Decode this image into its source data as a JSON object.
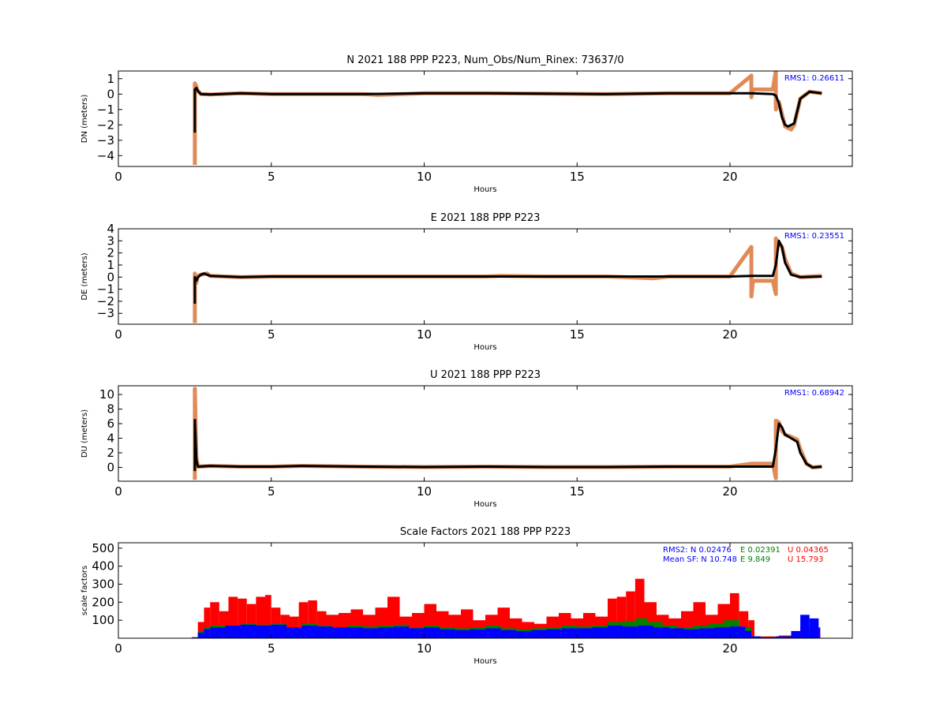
{
  "chart_data": [
    {
      "type": "scatter",
      "title": "N 2021 188 PPP  P223, Num_Obs/Num_Rinex: 73637/0",
      "xlabel": "Hours",
      "ylabel": "DN (meters)",
      "xlim": [
        0,
        24
      ],
      "ylim": [
        -4.7,
        1.5
      ],
      "xticks": [
        "0",
        "5",
        "10",
        "15",
        "20"
      ],
      "yticks": [
        "1",
        "0",
        "−1",
        "−2",
        "−3",
        "−4"
      ],
      "ytick_values": [
        1,
        0,
        -1,
        -2,
        -3,
        -4
      ],
      "annotation": "RMS1:  0.26611",
      "series": [
        {
          "color": "#e08a58",
          "x": [
            2.5,
            2.5,
            2.55,
            2.6,
            2.7,
            3,
            4,
            5,
            6,
            8,
            8.5,
            10,
            12,
            14,
            16,
            18,
            20,
            20.7,
            20.7,
            20.75,
            21.4,
            21.5,
            21.5,
            21.6,
            21.8,
            22,
            22.1,
            22.3,
            22.6,
            23
          ],
          "y": [
            -4.6,
            0.7,
            0.5,
            0.2,
            0.0,
            -0.02,
            0.05,
            0.0,
            0.0,
            0.0,
            -0.05,
            0.05,
            0.05,
            0.03,
            0.0,
            0.05,
            0.05,
            1.2,
            -0.2,
            0.3,
            0.3,
            1.5,
            -1.0,
            -0.5,
            -2.1,
            -2.3,
            -2.0,
            -0.3,
            0.15,
            0.05
          ]
        },
        {
          "color": "#000000",
          "x": [
            2.5,
            2.5,
            2.55,
            2.6,
            2.7,
            3,
            4,
            5,
            6,
            8,
            10,
            12,
            14,
            16,
            18,
            20,
            20.7,
            21.4,
            21.5,
            21.6,
            21.7,
            21.8,
            21.9,
            22.1,
            22.3,
            22.6,
            23
          ],
          "y": [
            -2.5,
            0.3,
            0.4,
            0.2,
            0.0,
            -0.02,
            0.05,
            0.0,
            0.0,
            0.0,
            0.05,
            0.05,
            0.03,
            0.0,
            0.05,
            0.05,
            0.05,
            0.0,
            -0.1,
            -0.6,
            -1.5,
            -2.0,
            -2.1,
            -1.9,
            -0.3,
            0.15,
            0.05
          ]
        }
      ]
    },
    {
      "type": "scatter",
      "title": "E 2021 188 PPP  P223",
      "xlabel": "Hours",
      "ylabel": "DE (meters)",
      "xlim": [
        0,
        24
      ],
      "ylim": [
        -3.9,
        4.0
      ],
      "xticks": [
        "0",
        "5",
        "10",
        "15",
        "20"
      ],
      "yticks": [
        "4",
        "3",
        "2",
        "1",
        "0",
        "−1",
        "−2",
        "−3"
      ],
      "ytick_values": [
        4,
        3,
        2,
        1,
        0,
        -1,
        -2,
        -3
      ],
      "annotation": "RMS1:  0.23551",
      "series": [
        {
          "color": "#e08a58",
          "x": [
            2.5,
            2.5,
            2.55,
            2.6,
            2.7,
            2.9,
            3,
            3.5,
            4,
            5,
            6,
            8,
            10,
            12,
            12.5,
            14,
            16,
            17.5,
            18,
            20,
            20.7,
            20.7,
            20.75,
            21.4,
            21.5,
            21.5,
            21.6,
            21.7,
            21.8,
            22,
            22.3,
            23
          ],
          "y": [
            -3.8,
            0.3,
            -0.5,
            0.1,
            0.2,
            0.3,
            0.1,
            0.05,
            0.0,
            0.05,
            0.05,
            0.05,
            0.05,
            0.05,
            0.1,
            0.05,
            0.05,
            -0.1,
            0.05,
            0.05,
            2.5,
            -1.6,
            -0.3,
            -0.3,
            -1.4,
            3.2,
            2.8,
            2.5,
            1.5,
            0.3,
            0.0,
            0.1
          ]
        },
        {
          "color": "#000000",
          "x": [
            2.5,
            2.5,
            2.55,
            2.6,
            2.7,
            2.8,
            3,
            3.5,
            4,
            5,
            6,
            8,
            10,
            12,
            14,
            16,
            18,
            20,
            20.7,
            21.4,
            21.5,
            21.6,
            21.7,
            21.8,
            22,
            22.3,
            23
          ],
          "y": [
            -2.2,
            0.0,
            -0.3,
            0.0,
            0.2,
            0.3,
            0.1,
            0.05,
            0.0,
            0.05,
            0.05,
            0.05,
            0.05,
            0.05,
            0.05,
            0.05,
            0.05,
            0.05,
            0.1,
            0.1,
            1.0,
            3.0,
            2.5,
            1.2,
            0.2,
            0.0,
            0.05
          ]
        }
      ]
    },
    {
      "type": "scatter",
      "title": "U 2021 188 PPP  P223",
      "xlabel": "Hours",
      "ylabel": "DU (meters)",
      "xlim": [
        0,
        24
      ],
      "ylim": [
        -1.9,
        11.2
      ],
      "xticks": [
        "0",
        "5",
        "10",
        "15",
        "20"
      ],
      "yticks": [
        "10",
        "8",
        "6",
        "4",
        "2",
        "0"
      ],
      "ytick_values": [
        10,
        8,
        6,
        4,
        2,
        0
      ],
      "annotation": "RMS1:  0.68942",
      "series": [
        {
          "color": "#e08a58",
          "x": [
            2.5,
            2.5,
            2.55,
            2.6,
            3,
            4,
            5,
            6,
            8,
            10,
            12,
            14,
            16,
            18,
            20,
            20.7,
            20.75,
            21.4,
            21.5,
            21.5,
            21.6,
            21.7,
            21.8,
            22,
            22.2,
            22.3,
            22.5,
            22.7,
            23
          ],
          "y": [
            -1.7,
            10.8,
            1.5,
            0.1,
            0.2,
            0.1,
            0.1,
            0.2,
            0.1,
            0.05,
            0.1,
            0.05,
            0.05,
            0.1,
            0.1,
            0.5,
            0.5,
            0.5,
            -1.5,
            6.4,
            6.2,
            5.0,
            4.5,
            4.2,
            3.8,
            2.5,
            0.5,
            0.0,
            0.1
          ]
        },
        {
          "color": "#000000",
          "x": [
            2.5,
            2.5,
            2.55,
            2.6,
            3,
            4,
            5,
            6,
            8,
            10,
            12,
            14,
            16,
            18,
            20,
            20.7,
            21.4,
            21.5,
            21.6,
            21.7,
            21.8,
            22,
            22.2,
            22.3,
            22.5,
            22.7,
            23
          ],
          "y": [
            -0.5,
            6.5,
            1.0,
            0.1,
            0.2,
            0.1,
            0.1,
            0.2,
            0.1,
            0.05,
            0.1,
            0.05,
            0.05,
            0.1,
            0.1,
            0.1,
            0.1,
            2.5,
            6.0,
            5.5,
            4.5,
            4.0,
            3.5,
            2.0,
            0.5,
            0.0,
            0.1
          ]
        }
      ]
    },
    {
      "type": "scatter",
      "title": "Scale Factors 2021 188 PPP  P223",
      "xlabel": "Hours",
      "ylabel": "scale factors",
      "xlim": [
        0,
        24
      ],
      "ylim": [
        0,
        530
      ],
      "xticks": [
        "0",
        "5",
        "10",
        "15",
        "20"
      ],
      "yticks": [
        "500",
        "400",
        "300",
        "200",
        "100"
      ],
      "ytick_values": [
        500,
        400,
        300,
        200,
        100
      ],
      "annotations": [
        {
          "text": "RMS2: N  0.02476",
          "color": "#0000ff"
        },
        {
          "text": "E  0.02391",
          "color": "#008000"
        },
        {
          "text": "U  0.04365",
          "color": "#ff0000"
        },
        {
          "text": "Mean SF: N  10.748",
          "color": "#0000ff"
        },
        {
          "text": "E   9.849",
          "color": "#008000"
        },
        {
          "text": "U  15.793",
          "color": "#ff0000"
        }
      ],
      "series": [
        {
          "color": "#ff0000",
          "x": [
            2.4,
            2.6,
            2.8,
            3.0,
            3.3,
            3.6,
            3.9,
            4.2,
            4.5,
            4.8,
            5.0,
            5.3,
            5.6,
            5.9,
            6.2,
            6.5,
            6.8,
            7.2,
            7.6,
            8.0,
            8.4,
            8.8,
            9.2,
            9.6,
            10.0,
            10.4,
            10.8,
            11.2,
            11.6,
            12.0,
            12.4,
            12.8,
            13.2,
            13.6,
            14.0,
            14.4,
            14.8,
            15.2,
            15.6,
            16.0,
            16.3,
            16.6,
            16.9,
            17.2,
            17.6,
            18.0,
            18.4,
            18.8,
            19.2,
            19.6,
            20.0,
            20.3,
            20.6,
            20.8,
            21.2,
            21.6,
            22.0,
            22.3,
            22.6,
            22.9
          ],
          "y": [
            5,
            90,
            170,
            200,
            150,
            230,
            220,
            190,
            230,
            240,
            170,
            130,
            120,
            200,
            210,
            150,
            130,
            140,
            160,
            130,
            170,
            230,
            120,
            140,
            190,
            150,
            130,
            160,
            100,
            130,
            170,
            110,
            90,
            80,
            120,
            140,
            110,
            140,
            120,
            220,
            230,
            260,
            330,
            200,
            130,
            110,
            150,
            200,
            130,
            190,
            250,
            150,
            100,
            10,
            10,
            15,
            20,
            60,
            60,
            40
          ]
        },
        {
          "color": "#008000",
          "x": [
            2.4,
            2.6,
            2.8,
            3.0,
            3.5,
            4.0,
            4.5,
            5.0,
            5.5,
            6.0,
            6.5,
            7.0,
            7.5,
            8.0,
            8.5,
            9.0,
            9.5,
            10.0,
            10.5,
            11.0,
            11.5,
            12.0,
            12.5,
            13.0,
            13.5,
            14.0,
            14.5,
            15.0,
            15.5,
            16.0,
            16.5,
            16.9,
            17.3,
            17.8,
            18.3,
            18.8,
            19.3,
            19.8,
            20.3,
            20.7,
            21.0,
            21.5,
            22.0,
            22.4,
            22.8
          ],
          "y": [
            5,
            40,
            60,
            70,
            65,
            80,
            75,
            80,
            60,
            80,
            70,
            60,
            70,
            65,
            70,
            75,
            60,
            70,
            60,
            55,
            60,
            70,
            55,
            50,
            55,
            60,
            70,
            65,
            70,
            90,
            95,
            110,
            90,
            70,
            60,
            70,
            80,
            100,
            60,
            10,
            5,
            10,
            15,
            25,
            30
          ]
        },
        {
          "color": "#0000ff",
          "x": [
            2.4,
            2.6,
            2.8,
            3.0,
            3.5,
            4.0,
            4.5,
            5.0,
            5.5,
            6.0,
            6.5,
            7.0,
            7.5,
            8.0,
            8.5,
            9.0,
            9.5,
            10.0,
            10.5,
            11.0,
            11.5,
            12.0,
            12.5,
            13.0,
            13.5,
            14.0,
            14.5,
            15.0,
            15.5,
            16.0,
            16.5,
            17.0,
            17.5,
            18.0,
            18.5,
            19.0,
            19.5,
            20.0,
            20.5,
            20.7,
            21.0,
            21.5,
            22.0,
            22.3,
            22.6,
            22.9
          ],
          "y": [
            5,
            30,
            50,
            60,
            70,
            75,
            70,
            75,
            60,
            70,
            65,
            60,
            60,
            55,
            60,
            65,
            55,
            60,
            50,
            45,
            50,
            55,
            45,
            40,
            45,
            50,
            55,
            55,
            60,
            70,
            65,
            70,
            60,
            55,
            50,
            55,
            60,
            65,
            40,
            10,
            5,
            10,
            40,
            130,
            110,
            60
          ]
        }
      ]
    }
  ]
}
